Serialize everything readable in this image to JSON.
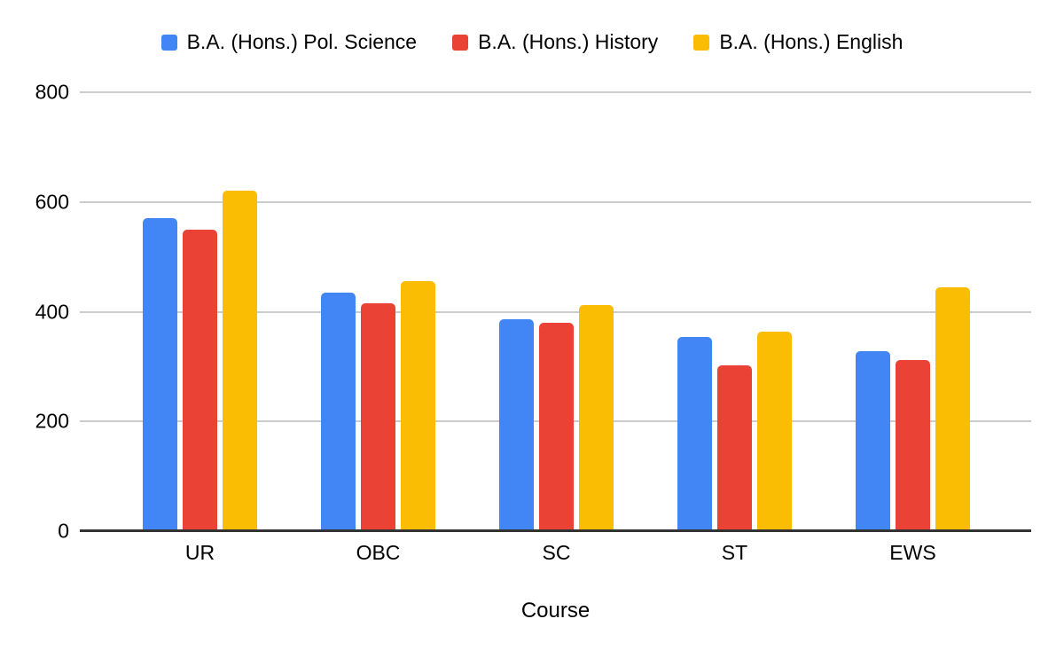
{
  "chart_data": {
    "type": "bar",
    "title": "",
    "xlabel": "Course",
    "ylabel": "",
    "categories": [
      "UR",
      "OBC",
      "SC",
      "ST",
      "EWS"
    ],
    "series": [
      {
        "name": "B.A. (Hons.) Pol. Science",
        "color": "#4285F4",
        "values": [
          570,
          435,
          387,
          354,
          328
        ]
      },
      {
        "name": "B.A. (Hons.) History",
        "color": "#EA4335",
        "values": [
          550,
          415,
          380,
          302,
          312
        ]
      },
      {
        "name": "B.A. (Hons.) English",
        "color": "#FBBC04",
        "values": [
          620,
          455,
          412,
          364,
          444
        ]
      }
    ],
    "ylim": [
      0,
      800
    ],
    "yticks": [
      0,
      200,
      400,
      600,
      800
    ],
    "grid": true,
    "legend_position": "top"
  },
  "colors": {
    "background": "#ffffff",
    "gridline": "#cccccc",
    "axis_line": "#333333",
    "text": "#000000"
  }
}
